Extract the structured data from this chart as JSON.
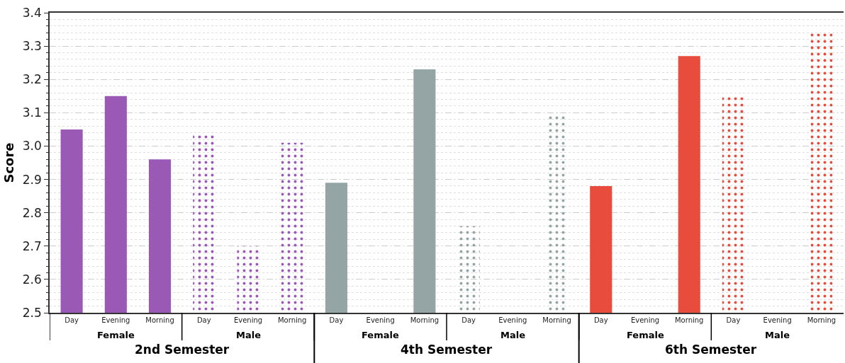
{
  "chart_data": {
    "type": "bar",
    "ylabel": "Score",
    "categories": [
      "Day",
      "Evening",
      "Morning",
      "Day",
      "Evening",
      "Morning",
      "Day",
      "Evening",
      "Morning",
      "Day",
      "Evening",
      "Morning",
      "Day",
      "Evening",
      "Morning",
      "Day",
      "Evening",
      "Morning"
    ],
    "series": [
      {
        "colors": [
          "#9b59b6",
          "#9b59b6",
          "#9b59b6",
          "#9b59b6",
          "#9b59b6",
          "#9b59b6",
          "#95a5a6",
          "#95a5a6",
          "#95a5a6",
          "#95a5a6",
          "#95a5a6",
          "#95a5a6",
          "#e74c3c",
          "#e74c3c",
          "#e74c3c",
          "#e74c3c",
          "#e74c3c",
          "#e74c3c"
        ],
        "values": [
          3.05,
          3.15,
          2.96,
          null,
          null,
          null,
          2.89,
          null,
          3.23,
          null,
          null,
          null,
          2.88,
          null,
          3.27,
          null,
          null,
          null
        ]
      },
      {
        "colors": [
          "#9b59b6",
          "#9b59b6",
          "#9b59b6",
          "#9b59b6",
          "#9b59b6",
          "#9b59b6",
          "#95a5a6",
          "#95a5a6",
          "#95a5a6",
          "#95a5a6",
          "#95a5a6",
          "#95a5a6",
          "#e74c3c",
          "#e74c3c",
          "#e74c3c",
          "#e74c3c",
          "#e74c3c",
          "#e74c3c"
        ],
        "values": [
          null,
          null,
          null,
          3.04,
          2.7,
          3.01,
          null,
          null,
          null,
          2.76,
          null,
          3.1,
          null,
          null,
          null,
          3.15,
          null,
          3.34
        ]
      }
    ],
    "annotations": [
      "Female",
      "Male",
      "Female",
      "Male",
      "Female",
      "Male",
      "2nd Semester",
      "4th Semester",
      "6th Semester"
    ],
    "ylim": [
      2.5,
      3.4
    ],
    "yticks": [
      2.5,
      2.6,
      2.7,
      2.8,
      2.9,
      {
        "value": 3.0,
        "label": "3.0"
      },
      3.1,
      3.2,
      3.3,
      3.4
    ],
    "grid": "y"
  }
}
